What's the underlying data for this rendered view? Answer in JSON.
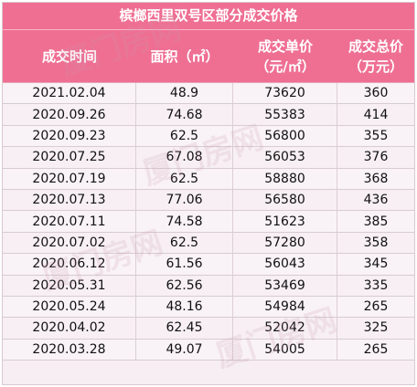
{
  "table": {
    "title": "槟榔西里双号区部分成交价格",
    "headers": [
      {
        "line1": "成交时间",
        "line2": ""
      },
      {
        "line1": "面积（㎡）",
        "line2": ""
      },
      {
        "line1": "成交单价",
        "line2": "（元/㎡）"
      },
      {
        "line1": "成交总价",
        "line2": "（万元）"
      }
    ],
    "rows": [
      [
        "2021.02.04",
        "48.9",
        "73620",
        "360"
      ],
      [
        "2020.09.26",
        "74.68",
        "55383",
        "414"
      ],
      [
        "2020.09.23",
        "62.5",
        "56800",
        "355"
      ],
      [
        "2020.07.25",
        "67.08",
        "56053",
        "376"
      ],
      [
        "2020.07.19",
        "62.5",
        "58880",
        "368"
      ],
      [
        "2020.07.13",
        "77.06",
        "56580",
        "436"
      ],
      [
        "2020.07.11",
        "74.58",
        "51623",
        "385"
      ],
      [
        "2020.07.02",
        "62.5",
        "57280",
        "358"
      ],
      [
        "2020.06.12",
        "61.56",
        "56043",
        "345"
      ],
      [
        "2020.05.31",
        "62.56",
        "53469",
        "335"
      ],
      [
        "2020.05.24",
        "48.16",
        "54984",
        "265"
      ],
      [
        "2020.04.02",
        "62.45",
        "52042",
        "325"
      ],
      [
        "2020.03.28",
        "49.07",
        "54005",
        "265"
      ]
    ]
  },
  "watermark": {
    "text": "厦门房网"
  },
  "colors": {
    "header_bg": "#ef6f93",
    "row_bg": "#f7eff3"
  }
}
